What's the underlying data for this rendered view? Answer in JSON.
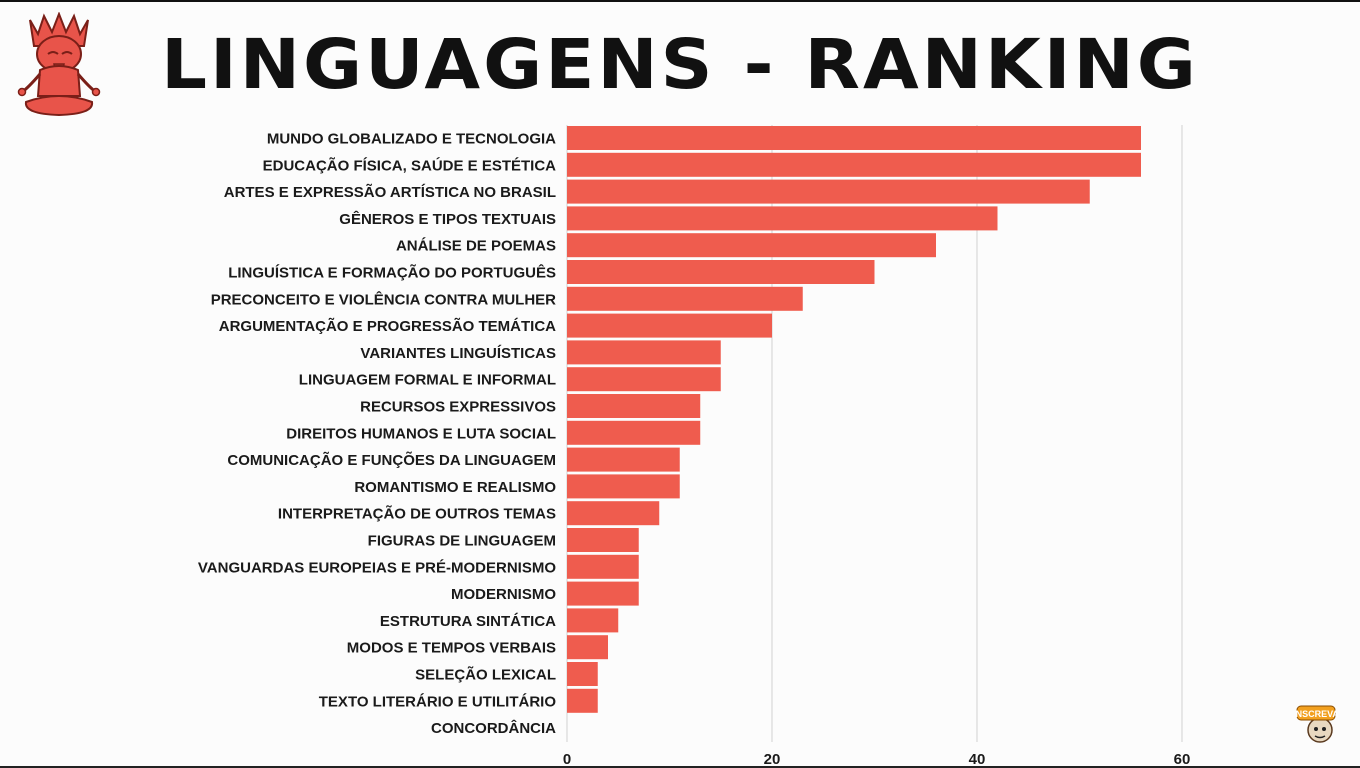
{
  "header": {
    "title": "LINGUAGENS - RANKING"
  },
  "badge": {
    "label": "INSCREVA"
  },
  "colors": {
    "bar": "#ef5c4e",
    "grid": "#d9d9d9",
    "text": "#1a1a1a",
    "mascot": "#e8544a"
  },
  "icons": {
    "mascot": "meditating-figure-icon",
    "badge": "subscribe-badge-icon"
  },
  "chart_data": {
    "type": "bar",
    "orientation": "horizontal",
    "title": "LINGUAGENS - RANKING",
    "xlabel": "",
    "ylabel": "",
    "xlim": [
      0,
      60
    ],
    "xticks": [
      0,
      20,
      40,
      60
    ],
    "grid": true,
    "categories": [
      "MUNDO GLOBALIZADO E TECNOLOGIA",
      "EDUCAÇÃO FÍSICA, SAÚDE E ESTÉTICA",
      "ARTES E EXPRESSÃO ARTÍSTICA NO BRASIL",
      "GÊNEROS E TIPOS TEXTUAIS",
      "ANÁLISE DE POEMAS",
      "LINGUÍSTICA E FORMAÇÃO DO PORTUGUÊS",
      "PRECONCEITO E VIOLÊNCIA CONTRA MULHER",
      "ARGUMENTAÇÃO E PROGRESSÃO TEMÁTICA",
      "VARIANTES LINGUÍSTICAS",
      "LINGUAGEM FORMAL E INFORMAL",
      "RECURSOS EXPRESSIVOS",
      "DIREITOS HUMANOS E LUTA SOCIAL",
      "COMUNICAÇÃO E FUNÇÕES DA LINGUAGEM",
      "ROMANTISMO E REALISMO",
      "INTERPRETAÇÃO DE OUTROS TEMAS",
      "FIGURAS DE LINGUAGEM",
      "VANGUARDAS EUROPEIAS E PRÉ-MODERNISMO",
      "MODERNISMO",
      "ESTRUTURA SINTÁTICA",
      "MODOS E TEMPOS VERBAIS",
      "SELEÇÃO LEXICAL",
      "TEXTO LITERÁRIO E UTILITÁRIO",
      "CONCORDÂNCIA"
    ],
    "values": [
      56,
      56,
      51,
      42,
      36,
      30,
      23,
      20,
      15,
      15,
      13,
      13,
      11,
      11,
      9,
      7,
      7,
      7,
      5,
      4,
      3,
      3,
      0
    ]
  }
}
